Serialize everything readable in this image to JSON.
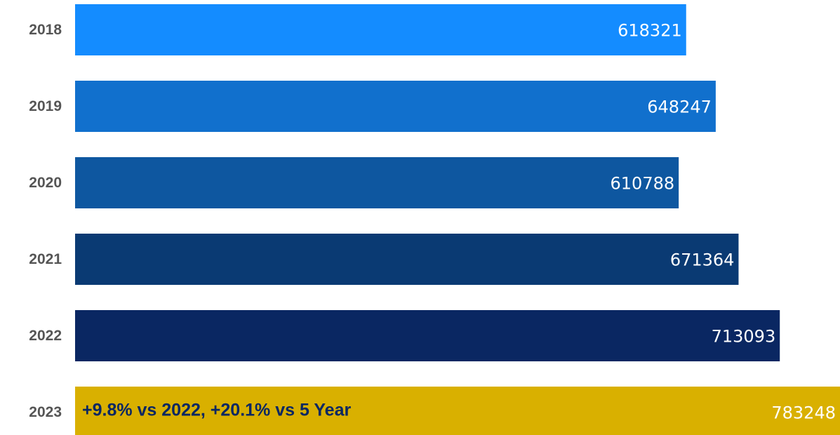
{
  "chart_data": {
    "type": "barh",
    "categories": [
      "2018",
      "2019",
      "2020",
      "2021",
      "2022",
      "2023"
    ],
    "values": [
      618321,
      648247,
      610788,
      671364,
      713093,
      783248
    ],
    "colors": [
      "#148cff",
      "#1170cd",
      "#0e57a0",
      "#0a3a73",
      "#0a2762",
      "#d9b000"
    ],
    "annotation": "+9.8% vs 2022, +20.1% vs 5 Year",
    "xlim": [
      0,
      774000
    ]
  }
}
